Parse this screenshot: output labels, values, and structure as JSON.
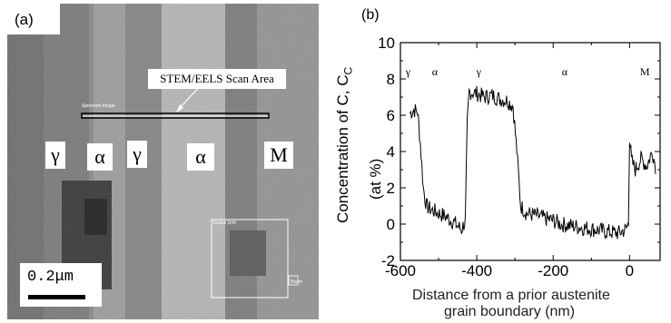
{
  "panel_a": {
    "label": "(a)",
    "scan_label": "STEM/EELS Scan Area",
    "spectrum_label": "Spectrum Image",
    "drift_label": "Spatial Drift",
    "beam_label": "Beam",
    "phases": [
      "γ",
      "α",
      "γ",
      "α",
      "M"
    ],
    "scale_text": "0.2μm"
  },
  "panel_b": {
    "label": "(b)"
  },
  "chart_data": {
    "type": "line",
    "title": "",
    "xlabel_line1": "Distance from a prior austenite",
    "xlabel_line2": "grain boundary (nm)",
    "ylabel": "Concentration of C, C",
    "ylabel_sub": "C",
    "ylabel_unit": "(at %)",
    "xlim": [
      -600,
      80
    ],
    "ylim": [
      -2,
      10
    ],
    "xticks": [
      "-600",
      "-400",
      "-200",
      "0"
    ],
    "yticks": [
      "-2",
      "0",
      "2",
      "4",
      "6",
      "8",
      "10"
    ],
    "phase_labels": [
      "γ",
      "α",
      "γ",
      "α",
      "M"
    ],
    "series": [
      {
        "x": [
          -575,
          -565,
          -555,
          -548,
          -540,
          -532,
          -520,
          -500,
          -480,
          -460,
          -440,
          -430,
          -425,
          -420,
          -400,
          -380,
          -360,
          -340,
          -320,
          -305,
          -295,
          -285,
          -270,
          -250,
          -220,
          -200,
          -180,
          -150,
          -120,
          -90,
          -60,
          -30,
          -10,
          -3,
          0,
          5,
          15,
          30,
          45,
          60,
          70
        ],
        "y": [
          6.1,
          6.3,
          6.2,
          4.5,
          2.0,
          1.0,
          0.8,
          0.6,
          0.4,
          0.1,
          -0.3,
          0.2,
          5.5,
          7.3,
          7.2,
          7.0,
          7.1,
          6.9,
          6.8,
          6.5,
          4.0,
          1.0,
          0.6,
          0.5,
          0.3,
          0.2,
          0.0,
          -0.1,
          -0.2,
          -0.3,
          -0.4,
          -0.5,
          -0.3,
          0.0,
          4.8,
          3.5,
          3.0,
          3.6,
          3.2,
          4.0,
          3.0
        ]
      }
    ]
  }
}
